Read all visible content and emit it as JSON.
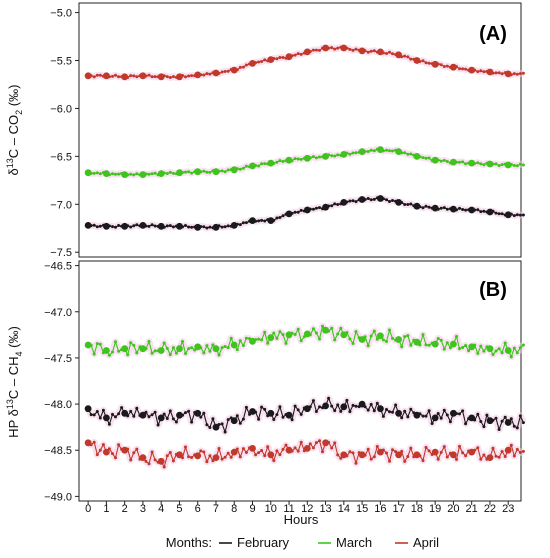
{
  "chart_data": [
    {
      "type": "line",
      "panel_label": "(A)",
      "ylabel": {
        "prefix": "δ",
        "sup": "13",
        "mid": "C – CO",
        "sub": "2",
        "suffix": " (‰)"
      },
      "ylim": [
        -7.55,
        -4.9
      ],
      "yticks": [
        -5.0,
        -5.5,
        -6.0,
        -6.5,
        -7.0,
        -7.5
      ],
      "ytick_labels": [
        "−5.0",
        "−5.5",
        "−6.0",
        "−6.5",
        "−7.0",
        "−7.5"
      ],
      "grid": false,
      "series": [
        {
          "name": "April",
          "color": "#c0392b",
          "hourly_x": [
            0,
            1,
            2,
            3,
            4,
            5,
            6,
            7,
            8,
            9,
            10,
            11,
            12,
            13,
            14,
            15,
            16,
            17,
            18,
            19,
            20,
            21,
            22,
            23
          ],
          "hourly_y": [
            -5.66,
            -5.66,
            -5.67,
            -5.66,
            -5.67,
            -5.67,
            -5.65,
            -5.63,
            -5.6,
            -5.53,
            -5.49,
            -5.46,
            -5.41,
            -5.37,
            -5.37,
            -5.4,
            -5.41,
            -5.44,
            -5.5,
            -5.54,
            -5.57,
            -5.6,
            -5.62,
            -5.64
          ]
        },
        {
          "name": "March",
          "color": "#3ec41c",
          "hourly_x": [
            0,
            1,
            2,
            3,
            4,
            5,
            6,
            7,
            8,
            9,
            10,
            11,
            12,
            13,
            14,
            15,
            16,
            17,
            18,
            19,
            20,
            21,
            22,
            23
          ],
          "hourly_y": [
            -6.67,
            -6.68,
            -6.69,
            -6.69,
            -6.68,
            -6.67,
            -6.66,
            -6.66,
            -6.64,
            -6.6,
            -6.57,
            -6.54,
            -6.52,
            -6.5,
            -6.48,
            -6.45,
            -6.43,
            -6.45,
            -6.5,
            -6.54,
            -6.56,
            -6.57,
            -6.58,
            -6.59
          ]
        },
        {
          "name": "February",
          "color": "#1a1a1a",
          "hourly_x": [
            0,
            1,
            2,
            3,
            4,
            5,
            6,
            7,
            8,
            9,
            10,
            11,
            12,
            13,
            14,
            15,
            16,
            17,
            18,
            19,
            20,
            21,
            22,
            23
          ],
          "hourly_y": [
            -7.22,
            -7.23,
            -7.23,
            -7.22,
            -7.23,
            -7.23,
            -7.24,
            -7.24,
            -7.22,
            -7.17,
            -7.17,
            -7.1,
            -7.06,
            -7.03,
            -6.98,
            -6.95,
            -6.94,
            -6.98,
            -7.02,
            -7.04,
            -7.05,
            -7.06,
            -7.08,
            -7.11
          ]
        }
      ]
    },
    {
      "type": "line",
      "panel_label": "(B)",
      "ylabel": {
        "prefix": "HP δ",
        "sup": "13",
        "mid": "C – CH",
        "sub": "4",
        "suffix": " (‰)"
      },
      "ylim": [
        -49.05,
        -46.45
      ],
      "yticks": [
        -46.5,
        -47.0,
        -47.5,
        -48.0,
        -48.5,
        -49.0
      ],
      "ytick_labels": [
        "−46.5",
        "−47.0",
        "−47.5",
        "−48.0",
        "−48.5",
        "−49.0"
      ],
      "grid": false,
      "series": [
        {
          "name": "March",
          "color": "#3ec41c",
          "hourly_x": [
            0,
            1,
            2,
            3,
            4,
            5,
            6,
            7,
            8,
            9,
            10,
            11,
            12,
            13,
            14,
            15,
            16,
            17,
            18,
            19,
            20,
            21,
            22,
            23
          ],
          "hourly_y": [
            -47.36,
            -47.42,
            -47.4,
            -47.4,
            -47.42,
            -47.4,
            -47.38,
            -47.4,
            -47.36,
            -47.32,
            -47.28,
            -47.25,
            -47.24,
            -47.2,
            -47.25,
            -47.3,
            -47.26,
            -47.3,
            -47.33,
            -47.35,
            -47.35,
            -47.38,
            -47.4,
            -47.42
          ]
        },
        {
          "name": "February",
          "color": "#1a1a1a",
          "hourly_x": [
            0,
            1,
            2,
            3,
            4,
            5,
            6,
            7,
            8,
            9,
            10,
            11,
            12,
            13,
            14,
            15,
            16,
            17,
            18,
            19,
            20,
            21,
            22,
            23
          ],
          "hourly_y": [
            -48.05,
            -48.15,
            -48.1,
            -48.12,
            -48.15,
            -48.12,
            -48.1,
            -48.25,
            -48.18,
            -48.08,
            -48.1,
            -48.12,
            -48.05,
            -48.02,
            -48.03,
            -48.0,
            -48.05,
            -48.1,
            -48.12,
            -48.15,
            -48.1,
            -48.15,
            -48.18,
            -48.2
          ]
        },
        {
          "name": "April",
          "color": "#c0392b",
          "hourly_x": [
            0,
            1,
            2,
            3,
            4,
            5,
            6,
            7,
            8,
            9,
            10,
            11,
            12,
            13,
            14,
            15,
            16,
            17,
            18,
            19,
            20,
            21,
            22,
            23
          ],
          "hourly_y": [
            -48.42,
            -48.52,
            -48.5,
            -48.58,
            -48.62,
            -48.55,
            -48.56,
            -48.58,
            -48.52,
            -48.48,
            -48.55,
            -48.5,
            -48.48,
            -48.42,
            -48.55,
            -48.55,
            -48.52,
            -48.55,
            -48.55,
            -48.52,
            -48.55,
            -48.52,
            -48.58,
            -48.5
          ]
        }
      ]
    }
  ],
  "x_axis": {
    "label": "Hours",
    "ticks": [
      0,
      1,
      2,
      3,
      4,
      5,
      6,
      7,
      8,
      9,
      10,
      11,
      12,
      13,
      14,
      15,
      16,
      17,
      18,
      19,
      20,
      21,
      22,
      23
    ],
    "xlim": [
      -0.5,
      23.7
    ]
  },
  "legend": {
    "title": "Months:",
    "placement": "bottom",
    "items": [
      {
        "label": "February",
        "color": "#1a1a1a"
      },
      {
        "label": "March",
        "color": "#3ec41c"
      },
      {
        "label": "April",
        "color": "#c0392b"
      }
    ]
  }
}
